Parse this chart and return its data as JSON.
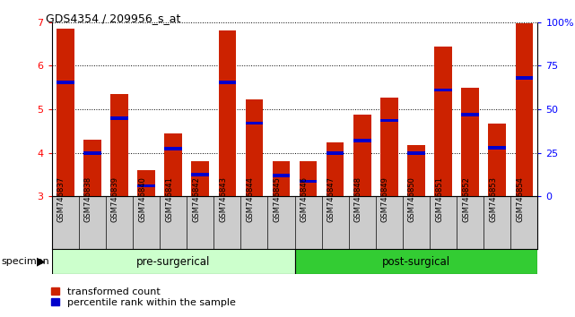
{
  "title": "GDS4354 / 209956_s_at",
  "samples": [
    "GSM746837",
    "GSM746838",
    "GSM746839",
    "GSM746840",
    "GSM746841",
    "GSM746842",
    "GSM746843",
    "GSM746844",
    "GSM746845",
    "GSM746846",
    "GSM746847",
    "GSM746848",
    "GSM746849",
    "GSM746850",
    "GSM746851",
    "GSM746852",
    "GSM746853",
    "GSM746854"
  ],
  "red_values": [
    6.85,
    4.3,
    5.35,
    3.6,
    4.45,
    3.82,
    6.82,
    5.22,
    3.82,
    3.82,
    4.25,
    4.87,
    5.28,
    4.18,
    6.45,
    5.5,
    4.68,
    6.97
  ],
  "blue_values": [
    5.62,
    4.0,
    4.8,
    3.25,
    4.1,
    3.5,
    5.62,
    4.68,
    3.48,
    3.35,
    4.0,
    4.28,
    4.75,
    4.0,
    5.45,
    4.88,
    4.12,
    5.72
  ],
  "ymin": 3.0,
  "ymax": 7.0,
  "yticks": [
    3,
    4,
    5,
    6,
    7
  ],
  "bar_color": "#CC2200",
  "blue_color": "#0000CC",
  "pre_surgical_label": "pre-surgerical",
  "post_surgical_label": "post-surgical",
  "pre_surgical_count": 9,
  "post_surgical_count": 9,
  "legend_red": "transformed count",
  "legend_blue": "percentile rank within the sample",
  "specimen_label": "specimen",
  "right_yticks": [
    0,
    25,
    50,
    75,
    100
  ],
  "right_yticklabels": [
    "0",
    "25",
    "50",
    "75",
    "100%"
  ],
  "bg_color": "#FFFFFF",
  "plot_bg": "#FFFFFF"
}
